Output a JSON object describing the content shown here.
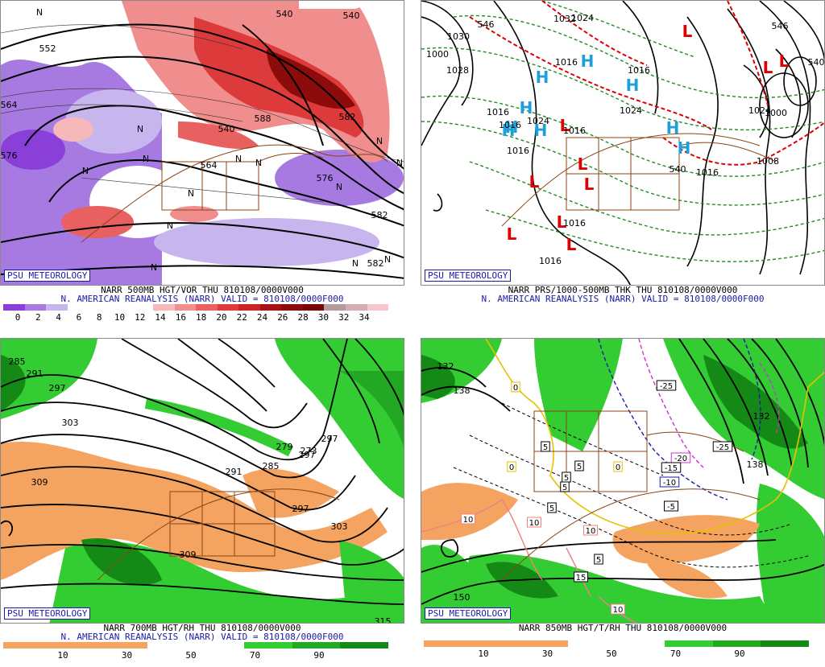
{
  "badge_text": "PSU METEOROLOGY",
  "panels": [
    {
      "id": "500mb",
      "caption_line1": "NARR 500MB HGT/VOR THU 810108/0000V000",
      "caption_line2": "N. AMERICAN REANALYSIS (NARR) VALID = 810108/0000F000",
      "colorbar_ticks": [
        "0",
        "2",
        "4",
        "6",
        "8",
        "10",
        "12",
        "14",
        "16",
        "18",
        "20",
        "22",
        "24",
        "26",
        "28",
        "30",
        "32",
        "34"
      ],
      "colorbar_colors": [
        "#8a3fd9",
        "#a77ae2",
        "#c7b6ee",
        "#ffffff",
        "#ffffff",
        "#ffffff",
        "#ffffff",
        "#f6b8b8",
        "#f08d8d",
        "#e86060",
        "#dd3b3b",
        "#cc2323",
        "#a91212",
        "#8c0b0b",
        "#7a0707",
        "#b59b9b",
        "#d4aeae",
        "#f7c5cc"
      ],
      "contour_labels": [
        "540",
        "552",
        "564",
        "576",
        "582",
        "588",
        "564",
        "540",
        "576",
        "582",
        "540",
        "582"
      ],
      "vorticity_markers": [
        "N",
        "N",
        "N",
        "N",
        "N",
        "N",
        "N",
        "N",
        "N",
        "N",
        "N",
        "N",
        "N",
        "N"
      ]
    },
    {
      "id": "thickness",
      "caption_line1": "NARR PRS/1000-500MB THK THU 810108/0000V000",
      "caption_line2": "N. AMERICAN REANALYSIS (NARR) VALID = 810108/0000F000",
      "isobar_labels": [
        "1032",
        "1030",
        "1000",
        "1028",
        "1024",
        "1016",
        "1016",
        "1016",
        "1024",
        "1016",
        "1016",
        "1016",
        "1024",
        "1008",
        "1000",
        "1024",
        "1016",
        "1016",
        "1016"
      ],
      "thickness_labels": [
        "546",
        "540",
        "546",
        "540"
      ],
      "highs": [
        "H",
        "H",
        "H",
        "H",
        "H",
        "H",
        "H",
        "H",
        "H"
      ],
      "lows": [
        "L",
        "L",
        "L",
        "L",
        "L",
        "L",
        "L",
        "L",
        "L",
        "L"
      ]
    },
    {
      "id": "700mb",
      "caption_line1": "NARR 700MB HGT/RH THU 810108/0000V000",
      "caption_line2": "N. AMERICAN REANALYSIS (NARR) VALID = 810108/0000F000",
      "colorbar_ticks": [
        "10",
        "30",
        "50",
        "70",
        "90"
      ],
      "colorbar_colors": [
        "#f4a460",
        "#f4a460",
        "#f4a460",
        "#ffffff",
        "#ffffff",
        "#33cc33",
        "#22a822",
        "#158915"
      ],
      "contour_labels": [
        "285",
        "291",
        "297",
        "303",
        "309",
        "297",
        "279",
        "273",
        "297",
        "285",
        "291",
        "297",
        "303",
        "309",
        "315"
      ]
    },
    {
      "id": "850mb",
      "caption_line1": "NARR 850MB HGT/T/RH THU 810108/0000V000",
      "colorbar_ticks": [
        "10",
        "30",
        "50",
        "70",
        "90"
      ],
      "colorbar_colors": [
        "#f4a460",
        "#f4a460",
        "#f4a460",
        "#ffffff",
        "#ffffff",
        "#33cc33",
        "#22a822",
        "#158915"
      ],
      "contour_labels": [
        "132",
        "138",
        "132",
        "138",
        "150"
      ],
      "temp_labels": [
        "-25",
        "-20",
        "-15",
        "-10",
        "-5",
        "-25",
        "5",
        "5",
        "5",
        "5",
        "5",
        "0",
        "0",
        "0",
        "10",
        "10",
        "10",
        "10",
        "15",
        "5"
      ]
    }
  ],
  "colors": {
    "border_brown": "#8b4513",
    "contour_black": "#000000",
    "thickness_green": "#228b22",
    "thickness_red": "#dd0000",
    "high_cyan": "#1e9fd8",
    "low_red": "#dd0000",
    "badge_blue": "#1a1aa6"
  }
}
